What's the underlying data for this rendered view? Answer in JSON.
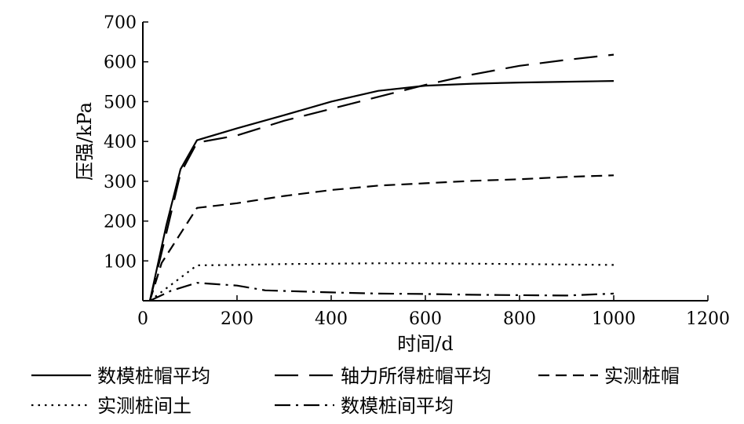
{
  "chart_data": {
    "type": "line",
    "xlabel": "时间/d",
    "ylabel": "压强/kPa",
    "xlim": [
      0,
      1200
    ],
    "ylim": [
      0,
      700
    ],
    "xticks": [
      0,
      200,
      400,
      600,
      800,
      1000,
      1200
    ],
    "yticks": [
      100,
      200,
      300,
      400,
      500,
      600,
      700
    ],
    "grid": false,
    "legend_position": "bottom",
    "series": [
      {
        "name": "数模桩帽平均",
        "dash": "solid",
        "points": [
          [
            15,
            0
          ],
          [
            50,
            190
          ],
          [
            80,
            330
          ],
          [
            115,
            403
          ],
          [
            200,
            433
          ],
          [
            300,
            466
          ],
          [
            400,
            500
          ],
          [
            500,
            527
          ],
          [
            600,
            540
          ],
          [
            700,
            545
          ],
          [
            800,
            548
          ],
          [
            900,
            550
          ],
          [
            1000,
            552
          ]
        ]
      },
      {
        "name": "轴力所得桩帽平均",
        "dash": "long-dash",
        "points": [
          [
            15,
            0
          ],
          [
            50,
            170
          ],
          [
            80,
            320
          ],
          [
            115,
            397
          ],
          [
            200,
            415
          ],
          [
            300,
            452
          ],
          [
            400,
            482
          ],
          [
            500,
            512
          ],
          [
            600,
            542
          ],
          [
            700,
            568
          ],
          [
            800,
            590
          ],
          [
            900,
            605
          ],
          [
            1000,
            618
          ]
        ]
      },
      {
        "name": "实测桩帽",
        "dash": "short-dash",
        "points": [
          [
            15,
            0
          ],
          [
            40,
            95
          ],
          [
            115,
            233
          ],
          [
            200,
            245
          ],
          [
            300,
            263
          ],
          [
            400,
            278
          ],
          [
            500,
            289
          ],
          [
            600,
            295
          ],
          [
            700,
            301
          ],
          [
            800,
            305
          ],
          [
            900,
            311
          ],
          [
            1000,
            315
          ]
        ]
      },
      {
        "name": "实测桩间土",
        "dash": "dotted",
        "points": [
          [
            15,
            0
          ],
          [
            60,
            40
          ],
          [
            115,
            89
          ],
          [
            200,
            90
          ],
          [
            300,
            92
          ],
          [
            400,
            93
          ],
          [
            500,
            94
          ],
          [
            600,
            94
          ],
          [
            700,
            93
          ],
          [
            800,
            92
          ],
          [
            900,
            91
          ],
          [
            1000,
            90
          ]
        ]
      },
      {
        "name": "数模桩间平均",
        "dash": "dash-dot",
        "points": [
          [
            15,
            0
          ],
          [
            60,
            25
          ],
          [
            115,
            45
          ],
          [
            200,
            38
          ],
          [
            260,
            26
          ],
          [
            400,
            21
          ],
          [
            500,
            18
          ],
          [
            600,
            17
          ],
          [
            700,
            15
          ],
          [
            800,
            14
          ],
          [
            900,
            13
          ],
          [
            1000,
            18
          ]
        ]
      }
    ]
  }
}
